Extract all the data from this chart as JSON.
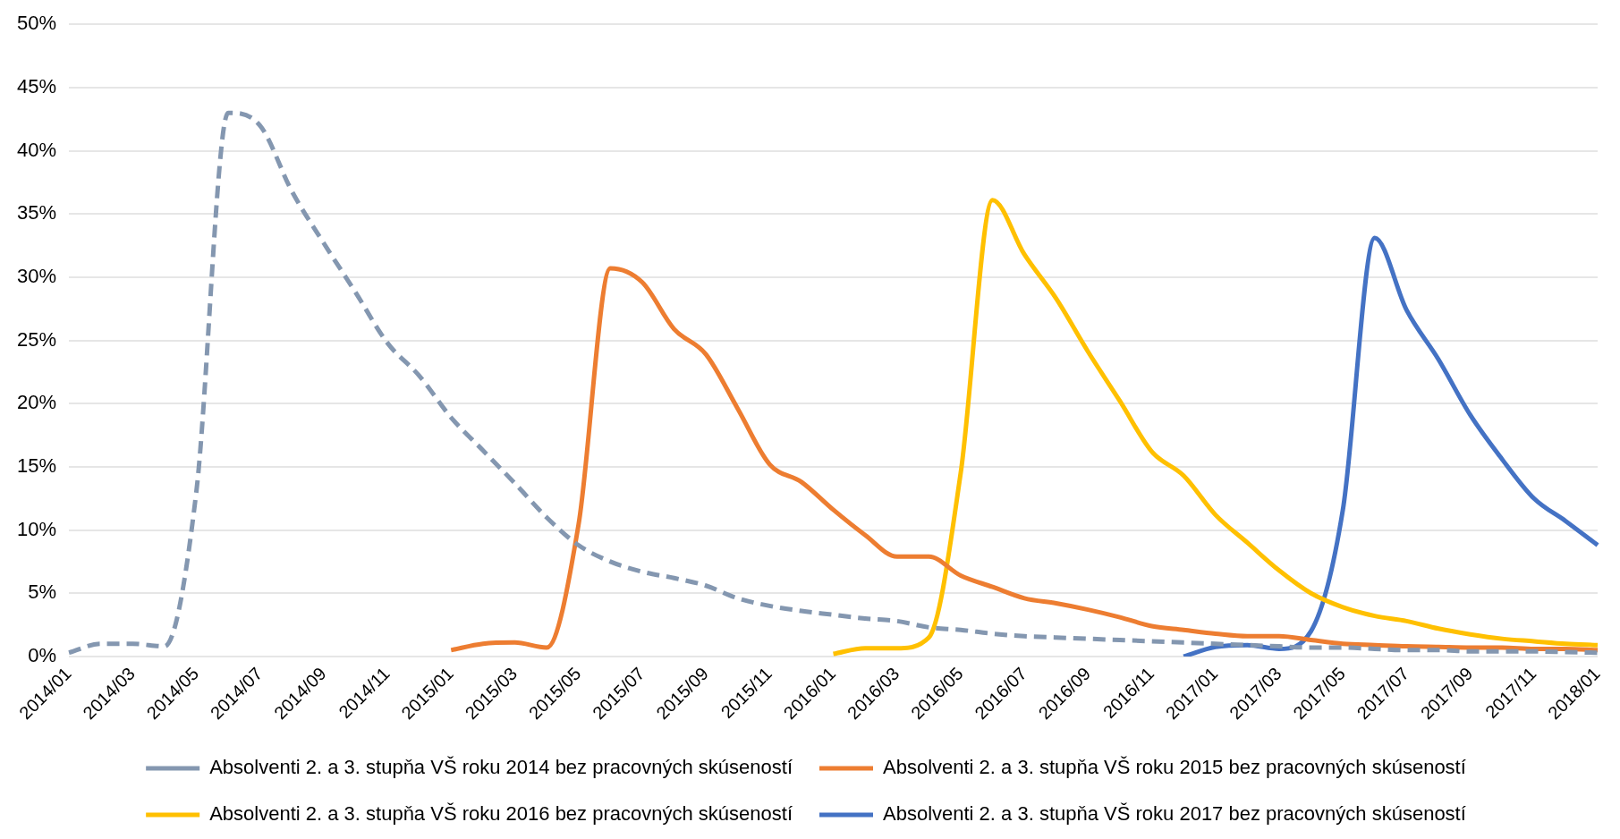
{
  "chart_data": {
    "type": "line",
    "categories": [
      "2014/01",
      null,
      "2014/03",
      null,
      "2014/05",
      null,
      "2014/07",
      null,
      "2014/09",
      null,
      "2014/11",
      null,
      "2015/01",
      null,
      "2015/03",
      null,
      "2015/05",
      null,
      "2015/07",
      null,
      "2015/09",
      null,
      "2015/11",
      null,
      "2016/01",
      null,
      "2016/03",
      null,
      "2016/05",
      null,
      "2016/07",
      null,
      "2016/09",
      null,
      "2016/11",
      null,
      "2017/01",
      null,
      "2017/03",
      null,
      "2017/05",
      null,
      "2017/07",
      null,
      "2017/09",
      null,
      "2017/11",
      null,
      "2018/01"
    ],
    "series": [
      {
        "name": "Absolventi 2. a 3. stupňa VŠ roku 2014 bez pracovných skúseností",
        "color": "#8497b0",
        "line_style": "dashed",
        "values": [
          0.3,
          1.0,
          1.0,
          0.8,
          13,
          43,
          42,
          36.8,
          32.7,
          28.8,
          24.8,
          22.2,
          18.9,
          16.3,
          13.7,
          11.0,
          8.8,
          7.5,
          6.7,
          6.2,
          5.6,
          4.6,
          4.0,
          3.6,
          3.3,
          3.0,
          2.8,
          2.3,
          2.1,
          1.8,
          1.6,
          1.5,
          1.4,
          1.3,
          1.2,
          1.1,
          1.0,
          0.9,
          0.8,
          0.7,
          0.7,
          0.6,
          0.5,
          0.5,
          0.4,
          0.4,
          0.4,
          0.35,
          0.3
        ]
      },
      {
        "name": "Absolventi 2. a 3. stupňa VŠ roku 2015 bez pracovných skúseností",
        "color": "#ed7d31",
        "line_style": "solid",
        "values": [
          null,
          null,
          null,
          null,
          null,
          null,
          null,
          null,
          null,
          null,
          null,
          null,
          0.5,
          1.0,
          1.1,
          0.7,
          10.4,
          30.7,
          29.6,
          25.9,
          23.9,
          19.6,
          15.2,
          13.8,
          11.6,
          9.6,
          7.9,
          7.9,
          6.4,
          5.5,
          4.6,
          4.2,
          3.7,
          3.1,
          2.4,
          2.1,
          1.8,
          1.6,
          1.6,
          1.3,
          1.0,
          0.9,
          0.8,
          0.75,
          0.7,
          0.7,
          0.6,
          0.6,
          0.5
        ]
      },
      {
        "name": "Absolventi 2. a 3. stupňa VŠ roku 2016 bez pracovných skúseností",
        "color": "#ffc000",
        "line_style": "solid",
        "values": [
          null,
          null,
          null,
          null,
          null,
          null,
          null,
          null,
          null,
          null,
          null,
          null,
          null,
          null,
          null,
          null,
          null,
          null,
          null,
          null,
          null,
          null,
          null,
          null,
          0.2,
          0.65,
          0.65,
          1.5,
          14.5,
          36.1,
          31.8,
          28.3,
          24.1,
          20.2,
          16.2,
          14.3,
          11.2,
          9.0,
          6.8,
          5.0,
          3.9,
          3.2,
          2.8,
          2.2,
          1.75,
          1.4,
          1.2,
          1.0,
          0.9
        ]
      },
      {
        "name": "Absolventi 2. a 3. stupňa VŠ roku 2017 bez pracovných skúseností",
        "color": "#4472c4",
        "line_style": "solid",
        "values": [
          null,
          null,
          null,
          null,
          null,
          null,
          null,
          null,
          null,
          null,
          null,
          null,
          null,
          null,
          null,
          null,
          null,
          null,
          null,
          null,
          null,
          null,
          null,
          null,
          null,
          null,
          null,
          null,
          null,
          null,
          null,
          null,
          null,
          null,
          null,
          0,
          0.75,
          0.9,
          0.6,
          2.0,
          11.6,
          33.1,
          27.4,
          23.5,
          19.1,
          15.6,
          12.5,
          10.7,
          8.8
        ]
      }
    ],
    "ylim": [
      0,
      50
    ],
    "yticks": [
      {
        "value": 0,
        "label": "0%"
      },
      {
        "value": 5,
        "label": "5%"
      },
      {
        "value": 10,
        "label": "10%"
      },
      {
        "value": 15,
        "label": "15%"
      },
      {
        "value": 20,
        "label": "20%"
      },
      {
        "value": 25,
        "label": "25%"
      },
      {
        "value": 30,
        "label": "30%"
      },
      {
        "value": 35,
        "label": "35%"
      },
      {
        "value": 40,
        "label": "40%"
      },
      {
        "value": 45,
        "label": "45%"
      },
      {
        "value": 50,
        "label": "50%"
      }
    ],
    "grid": "y",
    "legend": "bottom",
    "marker": "none"
  }
}
